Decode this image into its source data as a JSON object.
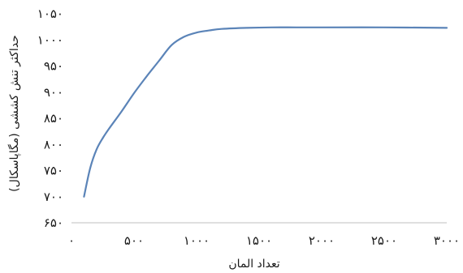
{
  "chart_data": {
    "type": "line",
    "title": "",
    "xlabel": "تعداد المان",
    "ylabel": "حداکثر تنش کششی (مگاپاسکال)",
    "xlim": [
      0,
      3000
    ],
    "ylim": [
      650,
      1050
    ],
    "x_ticks": [
      0,
      500,
      1000,
      1500,
      2000,
      2500,
      3000
    ],
    "y_ticks": [
      650,
      700,
      750,
      800,
      850,
      900,
      950,
      1000,
      1050
    ],
    "x_tick_labels": [
      "۰",
      "۵۰۰",
      "۱۰۰۰",
      "۱۵۰۰",
      "۲۰۰۰",
      "۲۵۰۰",
      "۳۰۰۰"
    ],
    "y_tick_labels": [
      "۶۵۰",
      "۷۰۰",
      "۷۵۰",
      "۸۰۰",
      "۸۵۰",
      "۹۰۰",
      "۹۵۰",
      "۱۰۰۰",
      "۱۰۵۰"
    ],
    "grid": false,
    "legend": "none",
    "series": [
      {
        "color": "#5b84b8",
        "x": [
          100,
          150,
          200,
          250,
          300,
          400,
          500,
          600,
          700,
          800,
          900,
          1000,
          1100,
          1200,
          1400,
          1600,
          1800,
          2000,
          2500,
          3000
        ],
        "y": [
          700,
          755,
          790,
          812,
          830,
          863,
          898,
          930,
          960,
          990,
          1006,
          1014,
          1018,
          1021,
          1023,
          1024,
          1024,
          1024,
          1024,
          1023
        ]
      }
    ]
  }
}
